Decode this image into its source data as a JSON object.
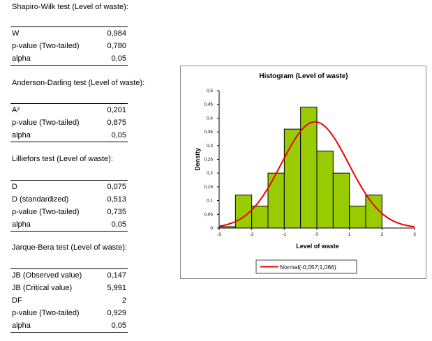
{
  "sections": [
    {
      "title": "Shapiro-Wilk test (Level of waste):",
      "rows": [
        {
          "label": "W",
          "value": "0,984"
        },
        {
          "label": "p-value (Two-tailed)",
          "value": "0,780"
        },
        {
          "label": "alpha",
          "value": "0,05"
        }
      ]
    },
    {
      "title": "Anderson-Darling test (Level of waste):",
      "rows": [
        {
          "label": "A²",
          "value": "0,201"
        },
        {
          "label": "p-value (Two-tailed)",
          "value": "0,875"
        },
        {
          "label": "alpha",
          "value": "0,05"
        }
      ]
    },
    {
      "title": "Lilliefors test (Level of waste):",
      "rows": [
        {
          "label": "D",
          "value": "0,075"
        },
        {
          "label": "D (standardized)",
          "value": "0,513"
        },
        {
          "label": "p-value (Two-tailed)",
          "value": "0,735"
        },
        {
          "label": "alpha",
          "value": "0,05"
        }
      ]
    },
    {
      "title": "Jarque-Bera test (Level of waste):",
      "rows": [
        {
          "label": "JB (Observed value)",
          "value": "0,147"
        },
        {
          "label": "JB (Critical value)",
          "value": "5,991"
        },
        {
          "label": "DF",
          "value": "2"
        },
        {
          "label": "p-value (Two-tailed)",
          "value": "0,929"
        },
        {
          "label": "alpha",
          "value": "0,05"
        }
      ]
    }
  ],
  "chart_data": {
    "type": "bar",
    "title": "Histogram  (Level of waste)",
    "xlabel": "Level of waste",
    "ylabel": "Density",
    "xlim": [
      -3,
      3
    ],
    "ylim": [
      0,
      0.5
    ],
    "x_ticks": [
      "-3",
      "-2",
      "-1",
      "0",
      "1",
      "2",
      "3"
    ],
    "y_ticks": [
      "0",
      "0,05",
      "0,1",
      "0,15",
      "0,2",
      "0,25",
      "0,3",
      "0,35",
      "0,4",
      "0,45",
      "0,5"
    ],
    "bins": [
      {
        "from": -3.0,
        "to": -2.5,
        "density": 0.005
      },
      {
        "from": -2.5,
        "to": -2.0,
        "density": 0.12
      },
      {
        "from": -2.0,
        "to": -1.5,
        "density": 0.08
      },
      {
        "from": -1.5,
        "to": -1.0,
        "density": 0.2
      },
      {
        "from": -1.0,
        "to": -0.5,
        "density": 0.36
      },
      {
        "from": -0.5,
        "to": 0.0,
        "density": 0.44
      },
      {
        "from": 0.0,
        "to": 0.5,
        "density": 0.28
      },
      {
        "from": 0.5,
        "to": 1.0,
        "density": 0.2
      },
      {
        "from": 1.0,
        "to": 1.5,
        "density": 0.08
      },
      {
        "from": 1.5,
        "to": 2.0,
        "density": 0.12
      }
    ],
    "normal_curve": {
      "mean": -0.057,
      "variance": 1.066
    },
    "legend_label": "Normal(-0,057;1,066)",
    "legend_position": "bottom-center",
    "colors": {
      "bar_fill": "#99cc00",
      "bar_edge": "#000000",
      "curve": "#ee0000"
    }
  }
}
